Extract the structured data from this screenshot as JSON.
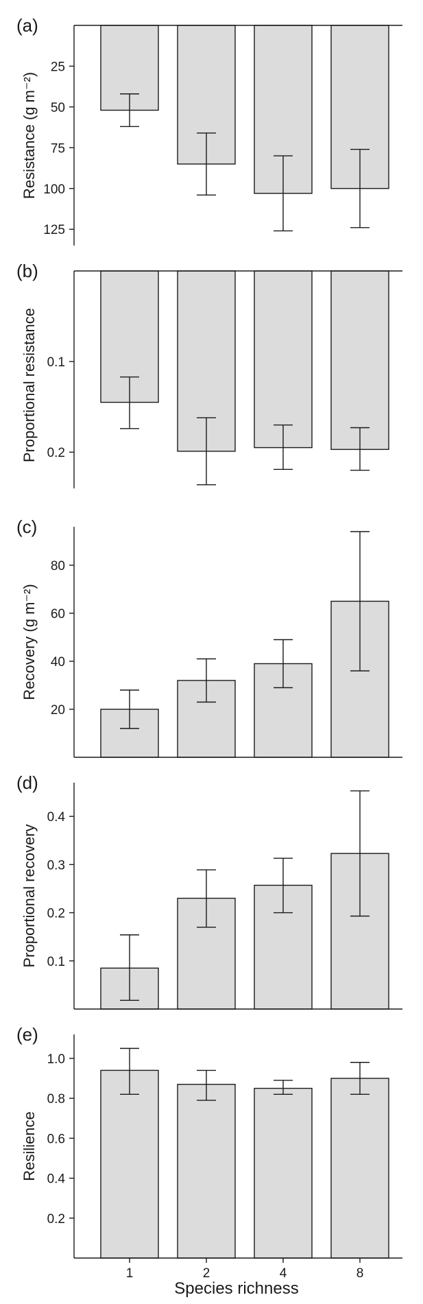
{
  "figure": {
    "xlabel": "Species richness",
    "categories": [
      "1",
      "2",
      "4",
      "8"
    ]
  },
  "chart_data": [
    {
      "panel": "(a)",
      "type": "bar",
      "ylabel": "Resistance (g m⁻²)",
      "inverted": true,
      "ylim": [
        0,
        135
      ],
      "yticks": [
        25,
        50,
        75,
        100,
        125
      ],
      "ytick_labels": [
        "25",
        "50",
        "75",
        "100",
        "125"
      ],
      "categories": [
        "1",
        "2",
        "4",
        "8"
      ],
      "values": [
        52,
        85,
        103,
        100
      ],
      "err_low": [
        42,
        66,
        80,
        76
      ],
      "err_high": [
        62,
        104,
        126,
        124
      ],
      "top_frame": true
    },
    {
      "panel": "(b)",
      "type": "bar",
      "ylabel": "Proportional resistance",
      "inverted": true,
      "ylim": [
        0,
        0.24
      ],
      "yticks": [
        0.1,
        0.2
      ],
      "ytick_labels": [
        "0.1",
        "0.2"
      ],
      "categories": [
        "1",
        "2",
        "4",
        "8"
      ],
      "values": [
        0.145,
        0.199,
        0.195,
        0.197
      ],
      "err_low": [
        0.117,
        0.162,
        0.17,
        0.173
      ],
      "err_high": [
        0.174,
        0.236,
        0.219,
        0.22
      ],
      "top_frame": true
    },
    {
      "panel": "(c)",
      "type": "bar",
      "ylabel": "Recovery (g m⁻²)",
      "inverted": false,
      "ylim": [
        0,
        96
      ],
      "yticks": [
        20,
        40,
        60,
        80
      ],
      "ytick_labels": [
        "20",
        "40",
        "60",
        "80"
      ],
      "categories": [
        "1",
        "2",
        "4",
        "8"
      ],
      "values": [
        20,
        32,
        39,
        65
      ],
      "err_low": [
        12,
        23,
        29,
        36
      ],
      "err_high": [
        28,
        41,
        49,
        94
      ],
      "top_frame": false
    },
    {
      "panel": "(d)",
      "type": "bar",
      "ylabel": "Proportional recovery",
      "inverted": false,
      "ylim": [
        0,
        0.47
      ],
      "yticks": [
        0.1,
        0.2,
        0.3,
        0.4
      ],
      "ytick_labels": [
        "0.1",
        "0.2",
        "0.3",
        "0.4"
      ],
      "categories": [
        "1",
        "2",
        "4",
        "8"
      ],
      "values": [
        0.085,
        0.23,
        0.257,
        0.323
      ],
      "err_low": [
        0.018,
        0.17,
        0.2,
        0.193
      ],
      "err_high": [
        0.154,
        0.289,
        0.313,
        0.453
      ],
      "top_frame": false
    },
    {
      "panel": "(e)",
      "type": "bar",
      "ylabel": "Resilience",
      "inverted": false,
      "ylim": [
        0,
        1.12
      ],
      "yticks": [
        0.2,
        0.4,
        0.6,
        0.8,
        1.0
      ],
      "ytick_labels": [
        "0.2",
        "0.4",
        "0.6",
        "0.8",
        "1.0"
      ],
      "categories": [
        "1",
        "2",
        "4",
        "8"
      ],
      "values": [
        0.94,
        0.87,
        0.85,
        0.9
      ],
      "err_low": [
        0.82,
        0.79,
        0.82,
        0.82
      ],
      "err_high": [
        1.05,
        0.94,
        0.89,
        0.98
      ],
      "top_frame": false
    }
  ]
}
